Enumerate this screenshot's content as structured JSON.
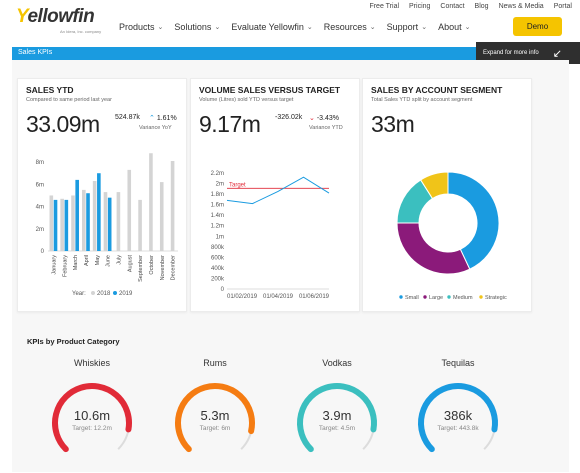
{
  "header": {
    "logo_text": "ellowfin",
    "logo_letter": "Y",
    "logo_sub": "An Idera, Inc. company",
    "util_links": [
      "Free Trial",
      "Pricing",
      "Contact",
      "Blog",
      "News & Media",
      "Portal"
    ],
    "nav": [
      "Products",
      "Solutions",
      "Evaluate Yellowfin",
      "Resources",
      "Support",
      "About"
    ],
    "demo_label": "Demo"
  },
  "banner": {
    "label": "Sales KPIs",
    "expand_label": "Expand for more info"
  },
  "cards": {
    "sales_ytd": {
      "title": "SALES YTD",
      "subtitle": "Compared to same period last year",
      "value": "33.09m",
      "delta": "524.87k",
      "pct": "1.61%",
      "delta_label": "Variance YoY",
      "legend_prefix": "Year:",
      "legend_2018": "2018",
      "legend_2019": "2019"
    },
    "volume": {
      "title": "VOLUME SALES VERSUS TARGET",
      "subtitle": "Volume (Litres) sold YTD versus target",
      "value": "9.17m",
      "delta": "-326.02k",
      "pct": "-3.43%",
      "delta_label": "Variance YTD",
      "target_label": "Target"
    },
    "segment": {
      "title": "SALES BY ACCOUNT SEGMENT",
      "subtitle": "Total Sales YTD split by account segment",
      "value": "33m"
    }
  },
  "kpis": {
    "title": "KPIs by Product Category",
    "items": [
      {
        "name": "Whiskies",
        "value": "10.6m",
        "target": "Target: 12.2m",
        "color": "#e12b38",
        "fraction": 0.87
      },
      {
        "name": "Rums",
        "value": "5.3m",
        "target": "Target: 6m",
        "color": "#f57c12",
        "fraction": 0.88
      },
      {
        "name": "Vodkas",
        "value": "3.9m",
        "target": "Target: 4.5m",
        "color": "#3bbfbf",
        "fraction": 0.87
      },
      {
        "name": "Tequilas",
        "value": "386k",
        "target": "Target: 443.8k",
        "color": "#1a9be0",
        "fraction": 0.87
      }
    ]
  },
  "colors": {
    "accent": "#1a9be0",
    "brand_yellow": "#f5c400",
    "up": "#1a9be0",
    "down": "#e12b38"
  },
  "chart_data": [
    {
      "type": "bar",
      "categories": [
        "January",
        "February",
        "March",
        "April",
        "May",
        "June",
        "July",
        "August",
        "September",
        "October",
        "November",
        "December"
      ],
      "series": [
        {
          "name": "2018",
          "values": [
            5.0,
            4.7,
            5.0,
            5.5,
            6.3,
            5.3,
            5.3,
            7.3,
            4.6,
            8.8,
            6.2,
            8.1
          ]
        },
        {
          "name": "2019",
          "values": [
            4.6,
            4.6,
            6.4,
            5.2,
            7.0,
            4.8,
            null,
            null,
            null,
            null,
            null,
            null
          ]
        }
      ],
      "yticks": [
        "0",
        "2m",
        "4m",
        "6m",
        "8m"
      ],
      "ylim": [
        0,
        9
      ]
    },
    {
      "type": "line",
      "x_ticks": [
        "01/02/2019",
        "01/04/2019",
        "01/06/2019"
      ],
      "x": [
        "01/02/2019",
        "01/03/2019",
        "01/04/2019",
        "01/05/2019",
        "01/06/2019"
      ],
      "series": [
        {
          "name": "",
          "values": [
            1.68,
            1.62,
            1.85,
            2.12,
            1.82
          ]
        },
        {
          "name": "Target",
          "values": [
            1.91,
            1.91,
            1.91,
            1.91,
            1.91
          ]
        }
      ],
      "yticks": [
        "0",
        "200k",
        "400k",
        "600k",
        "800k",
        "1m",
        "1.2m",
        "1.4m",
        "1.6m",
        "1.8m",
        "2m",
        "2.2m"
      ],
      "ylim": [
        0,
        2.2
      ]
    },
    {
      "type": "pie",
      "series": [
        {
          "name": "Small",
          "value": 43,
          "color": "#1a9be0"
        },
        {
          "name": "Large",
          "value": 32,
          "color": "#8b1a7a"
        },
        {
          "name": "Medium",
          "value": 16,
          "color": "#3bbfbf"
        },
        {
          "name": "Strategic",
          "value": 9,
          "color": "#f0c419"
        }
      ]
    }
  ]
}
